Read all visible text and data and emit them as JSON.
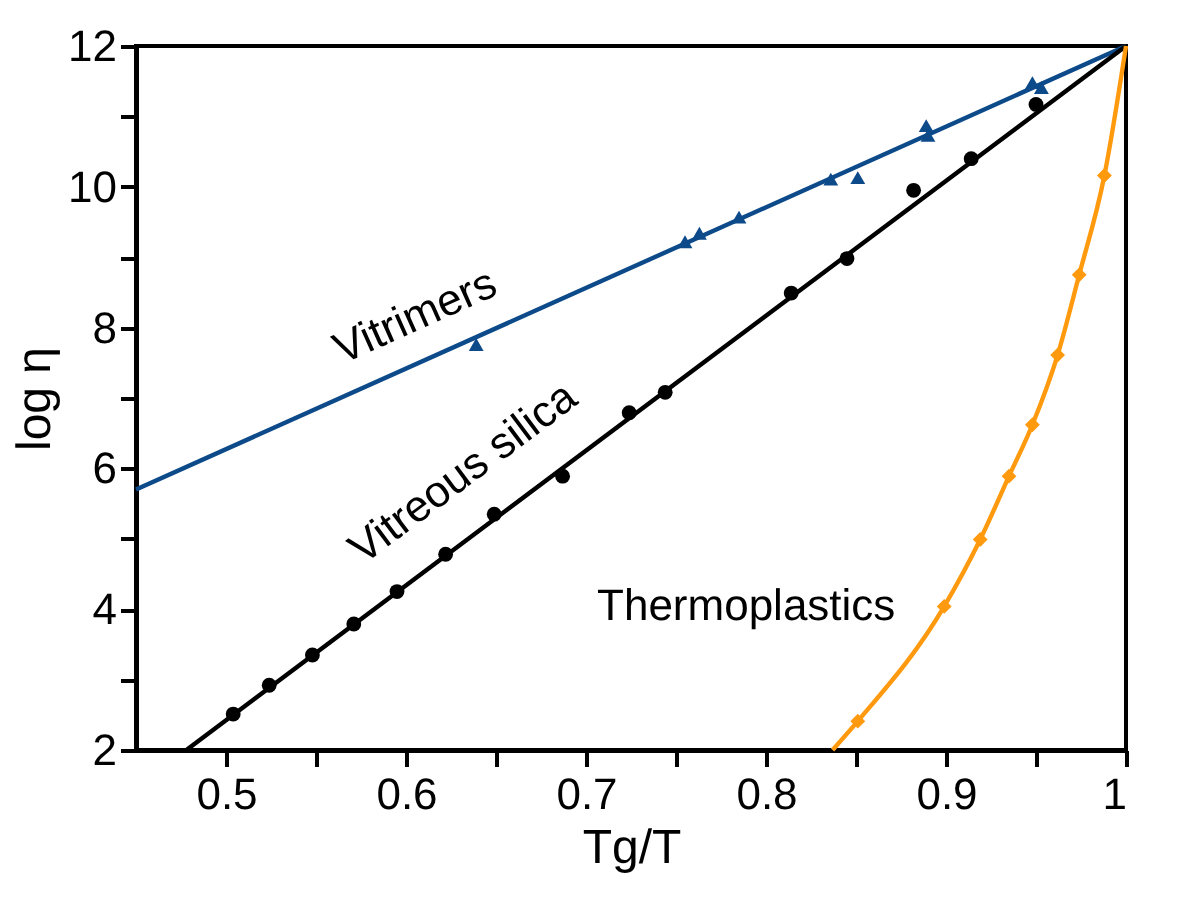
{
  "chart_data": {
    "type": "line",
    "xlabel": "Tg/T",
    "ylabel": "log η",
    "xlim": [
      0.45,
      1.0
    ],
    "ylim": [
      2,
      12
    ],
    "xticks": [
      0.5,
      {
        "value": 0.55,
        "label": null
      },
      0.6,
      {
        "value": 0.65,
        "label": null
      },
      0.7,
      {
        "value": 0.75,
        "label": null
      },
      0.8,
      {
        "value": 0.85,
        "label": null
      },
      0.9,
      {
        "value": 0.95,
        "label": null
      },
      {
        "value": 1.0,
        "label": "1"
      }
    ],
    "yticks": [
      2,
      {
        "value": 3,
        "label": null
      },
      4,
      {
        "value": 5,
        "label": null
      },
      6,
      {
        "value": 7,
        "label": null
      },
      8,
      {
        "value": 9,
        "label": null
      },
      10,
      {
        "value": 11,
        "label": null
      },
      12
    ],
    "series": [
      {
        "name": "Vitrimers",
        "color": "#0c4a8a",
        "x": [
          0.45,
          1.0
        ],
        "values": [
          5.7,
          12
        ],
        "marker": "none"
      },
      {
        "type": "scatter",
        "color": "#0c4a8a",
        "marker": "triangle",
        "x": [
          0.639,
          0.755,
          0.763,
          0.785,
          0.836,
          0.851,
          0.889,
          0.89,
          0.948,
          0.953
        ],
        "values": [
          7.76,
          9.22,
          9.34,
          9.57,
          10.11,
          10.13,
          10.87,
          10.73,
          11.48,
          11.41
        ]
      },
      {
        "name": "Vitreous silica",
        "color": "#000000",
        "x": [
          0.478,
          1.0
        ],
        "values": [
          2,
          12
        ],
        "marker": "none"
      },
      {
        "type": "scatter",
        "color": "#000000",
        "marker": "circle",
        "x": [
          0.504,
          0.524,
          0.548,
          0.571,
          0.595,
          0.622,
          0.649,
          0.687,
          0.724,
          0.744,
          0.814,
          0.845,
          0.882,
          0.914,
          0.95
        ],
        "values": [
          2.51,
          2.92,
          3.35,
          3.79,
          4.25,
          4.78,
          5.35,
          5.89,
          6.79,
          7.08,
          8.49,
          8.98,
          9.95,
          10.4,
          11.17
        ]
      },
      {
        "name": "Thermoplastics",
        "color": "#ff9a0f",
        "x": [
          0.837,
          0.851,
          0.899,
          0.919,
          0.935,
          0.948,
          0.962,
          0.974,
          0.988,
          1.0
        ],
        "values": [
          2,
          2.41,
          4.04,
          4.99,
          5.89,
          6.62,
          7.61,
          8.75,
          10.16,
          12
        ],
        "marker": "none"
      },
      {
        "type": "scatter",
        "color": "#ff9a0f",
        "marker": "diamond",
        "x": [
          0.851,
          0.899,
          0.919,
          0.935,
          0.948,
          0.962,
          0.974,
          0.988
        ],
        "values": [
          2.41,
          4.04,
          4.99,
          5.89,
          6.62,
          7.61,
          8.75,
          10.16
        ]
      }
    ]
  }
}
